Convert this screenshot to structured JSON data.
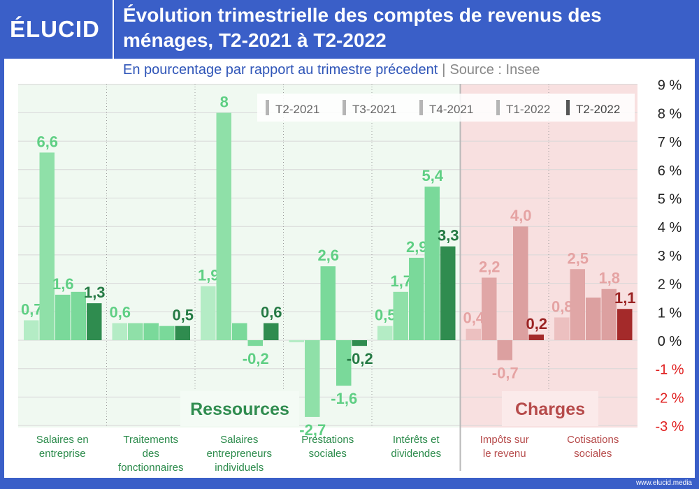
{
  "brand": {
    "logo": "ÉLUCID",
    "footer_url": "www.elucid.media"
  },
  "header": {
    "title": "Évolution trimestrielle des comptes de revenus des ménages, T2-2021 à T2-2022",
    "subtitle": "En pourcentage par rapport au trimestre précedent",
    "separator": "|",
    "source": "Source : Insee"
  },
  "colors": {
    "ressources": [
      "#b4ecc5",
      "#8fe0a8",
      "#7ad99a",
      "#7ad99a",
      "#2f8c4f"
    ],
    "charges": [
      "#ecc0c0",
      "#e0a6a6",
      "#dca0a0",
      "#dca0a0",
      "#a42a2a"
    ],
    "ressources_label": "#2f8c4f",
    "charges_label": "#b64a4a",
    "charges_bg": "#f8e0e0",
    "ressources_bg": "#f0f9f1",
    "axis_neg": "#e02020"
  },
  "chart_data": {
    "type": "bar",
    "series_names": [
      "T2-2021",
      "T3-2021",
      "T4-2021",
      "T1-2022",
      "T2-2022"
    ],
    "ylim": [
      -3,
      9
    ],
    "yticks": [
      {
        "value": 9,
        "label": "9 %"
      },
      {
        "value": 8,
        "label": "8 %"
      },
      {
        "value": 7,
        "label": "7 %"
      },
      {
        "value": 6,
        "label": "6 %"
      },
      {
        "value": 5,
        "label": "5 %"
      },
      {
        "value": 4,
        "label": "4 %"
      },
      {
        "value": 3,
        "label": "3 %"
      },
      {
        "value": 2,
        "label": "2 %"
      },
      {
        "value": 1,
        "label": "1 %"
      },
      {
        "value": 0,
        "label": "0 %"
      },
      {
        "value": -1,
        "label": "-1 %"
      },
      {
        "value": -2,
        "label": "-2 %"
      },
      {
        "value": -3,
        "label": "-3 %"
      }
    ],
    "zero_label_extra": "0",
    "group_labels": {
      "ressources": "Ressources",
      "charges": "Charges"
    },
    "categories": [
      {
        "name": "Salaires en entreprise",
        "lines": [
          "Salaires en",
          "entreprise"
        ],
        "group": "ressources",
        "values": [
          0.7,
          6.6,
          1.6,
          1.7,
          1.3
        ],
        "labels": [
          "0,7",
          "6,6",
          "1,6",
          "",
          "1,3"
        ]
      },
      {
        "name": "Traitements des fonctionnaires",
        "lines": [
          "Traitements",
          "des",
          "fonctionnaires"
        ],
        "group": "ressources",
        "values": [
          0.6,
          0.6,
          0.6,
          0.5,
          0.5
        ],
        "labels": [
          "0,6",
          "",
          "",
          "",
          "0,5"
        ]
      },
      {
        "name": "Salaires entrepreneurs individuels",
        "lines": [
          "Salaires",
          "entrepreneurs",
          "individuels"
        ],
        "group": "ressources",
        "values": [
          1.9,
          8.0,
          0.6,
          -0.2,
          0.6
        ],
        "labels": [
          "1,9",
          "8",
          "",
          "-0,2",
          "0,6"
        ]
      },
      {
        "name": "Prestations sociales",
        "lines": [
          "Prestations",
          "sociales"
        ],
        "group": "ressources",
        "values": [
          -0.05,
          -2.7,
          2.6,
          -1.6,
          -0.2
        ],
        "labels": [
          "",
          "-2,7",
          "2,6",
          "-1,6",
          "-0,2"
        ]
      },
      {
        "name": "Intérêts et dividendes",
        "lines": [
          "Intérêts et",
          "dividendes"
        ],
        "group": "ressources",
        "values": [
          0.5,
          1.7,
          2.9,
          5.4,
          3.3
        ],
        "labels": [
          "0,5",
          "1,7",
          "2,9",
          "5,4",
          "3,3"
        ]
      },
      {
        "name": "Impôts sur le revenu",
        "lines": [
          "Impôts sur",
          "le revenu"
        ],
        "group": "charges",
        "values": [
          0.4,
          2.2,
          -0.7,
          4.0,
          0.2
        ],
        "labels": [
          "0,4",
          "2,2",
          "-0,7",
          "4,0",
          "0,2"
        ]
      },
      {
        "name": "Cotisations sociales",
        "lines": [
          "Cotisations",
          "sociales"
        ],
        "group": "charges",
        "values": [
          0.8,
          2.5,
          1.5,
          1.8,
          1.1
        ],
        "labels": [
          "0,8",
          "2,5",
          "",
          "1,8",
          "1,1"
        ]
      }
    ]
  }
}
